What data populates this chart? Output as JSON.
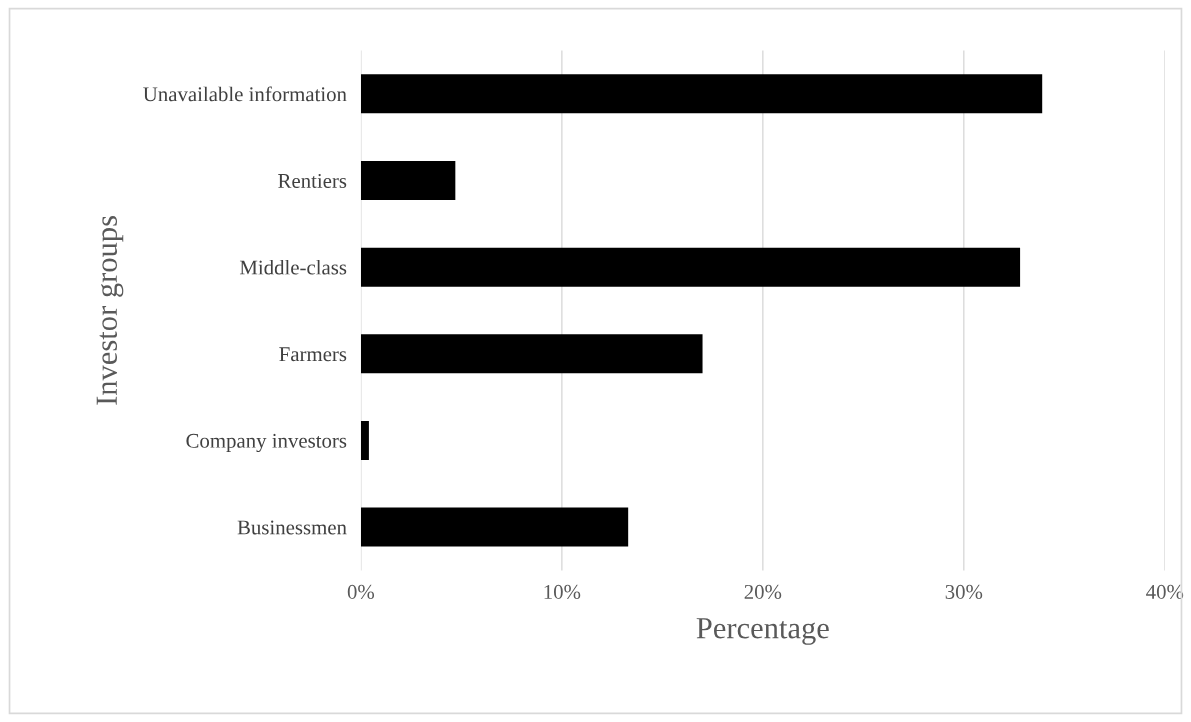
{
  "chart_data": {
    "type": "bar",
    "orientation": "horizontal",
    "xlabel": "Percentage",
    "ylabel": "Investor groups",
    "categories": [
      "Unavailable information",
      "Rentiers",
      "Middle-class",
      "Farmers",
      "Company investors",
      "Businessmen"
    ],
    "values": [
      33.9,
      4.7,
      32.8,
      17.0,
      0.4,
      13.3
    ],
    "color": "#000000",
    "xlim": [
      0,
      40
    ],
    "xticks": [
      {
        "value": 0,
        "label": "0%"
      },
      {
        "value": 10,
        "label": "10%"
      },
      {
        "value": 20,
        "label": "20%"
      },
      {
        "value": 30,
        "label": "30%"
      },
      {
        "value": 40,
        "label": "40%"
      }
    ],
    "grid": "x",
    "legend": false
  }
}
